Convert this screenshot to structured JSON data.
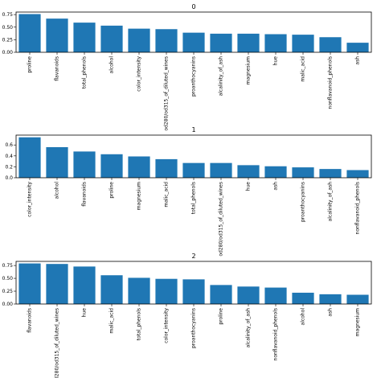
{
  "chart_data": [
    {
      "type": "bar",
      "title": "0",
      "categories": [
        "proline",
        "flavanoids",
        "total_phenols",
        "alcohol",
        "color_intensity",
        "od280/od315_of_diluted_wines",
        "proanthocyanins",
        "alcalinity_of_ash",
        "magnesium",
        "hue",
        "malic_acid",
        "nonflavanoid_phenols",
        "ash"
      ],
      "values": [
        0.76,
        0.67,
        0.59,
        0.53,
        0.47,
        0.46,
        0.39,
        0.37,
        0.37,
        0.36,
        0.35,
        0.3,
        0.19
      ],
      "ylim": [
        0,
        0.8
      ],
      "yticks": [
        "0.00",
        "0.25",
        "0.50",
        "0.75"
      ],
      "ytick_values": [
        0,
        0.25,
        0.5,
        0.75
      ],
      "bar_color": "#1f77b4"
    },
    {
      "type": "bar",
      "title": "1",
      "categories": [
        "color_intensity",
        "alcohol",
        "flavanoids",
        "proline",
        "magnesium",
        "malic_acid",
        "total_phenols",
        "od280/od315_of_diluted_wines",
        "hue",
        "ash",
        "proanthocyanins",
        "alcalinity_of_ash",
        "nonflavanoid_phenols"
      ],
      "values": [
        0.74,
        0.56,
        0.48,
        0.43,
        0.39,
        0.34,
        0.27,
        0.27,
        0.23,
        0.21,
        0.19,
        0.16,
        0.14
      ],
      "ylim": [
        0,
        0.78
      ],
      "yticks": [
        "0.0",
        "0.2",
        "0.4",
        "0.6"
      ],
      "ytick_values": [
        0,
        0.2,
        0.4,
        0.6
      ],
      "bar_color": "#1f77b4"
    },
    {
      "type": "bar",
      "title": "2",
      "categories": [
        "flavanoids",
        "od280/od315_of_diluted_wines",
        "hue",
        "malic_acid",
        "total_phenols",
        "color_intensity",
        "proanthocyanins",
        "proline",
        "alcalinity_of_ash",
        "nonflavanoid_phenols",
        "alcohol",
        "ash",
        "magnesium"
      ],
      "values": [
        0.79,
        0.78,
        0.73,
        0.56,
        0.51,
        0.49,
        0.48,
        0.37,
        0.34,
        0.32,
        0.22,
        0.19,
        0.18
      ],
      "ylim": [
        0,
        0.83
      ],
      "yticks": [
        "0.00",
        "0.25",
        "0.50",
        "0.75"
      ],
      "ytick_values": [
        0,
        0.25,
        0.5,
        0.75
      ],
      "bar_color": "#1f77b4"
    }
  ]
}
